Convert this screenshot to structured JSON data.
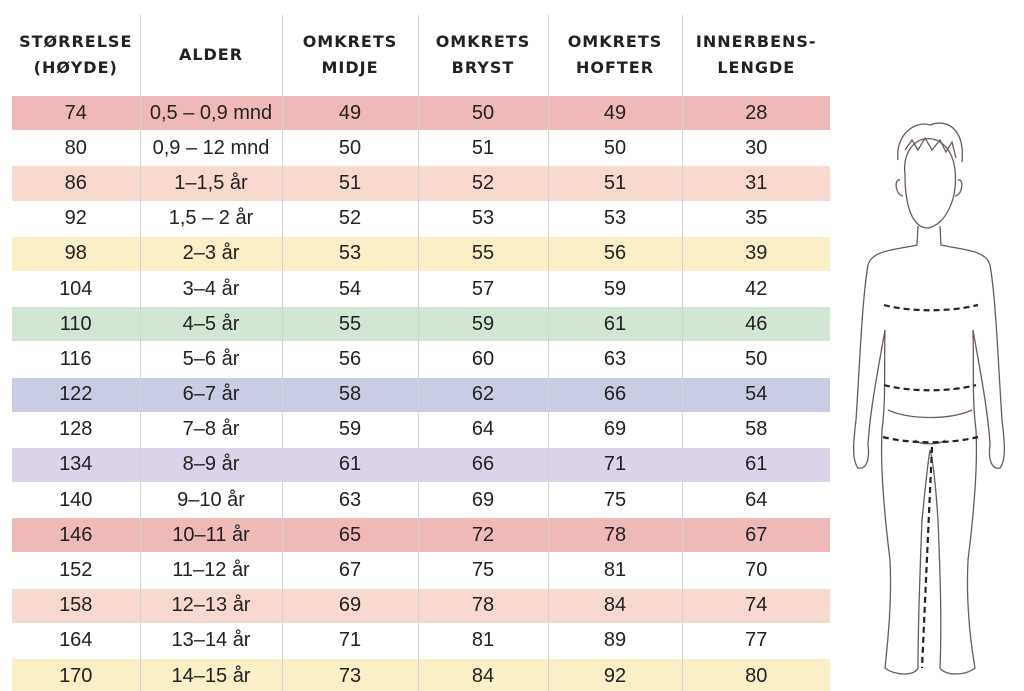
{
  "table": {
    "header": [
      [
        "STØRRELSE",
        "(HØYDE)"
      ],
      [
        "ALDER"
      ],
      [
        "OMKRETS",
        "MIDJE"
      ],
      [
        "OMKRETS",
        "BRYST"
      ],
      [
        "OMKRETS",
        "HOFTER"
      ],
      [
        "INNERBENS-",
        "LENGDE"
      ]
    ],
    "rows": [
      [
        74,
        "0,5 – 0,9 mnd",
        49,
        50,
        49,
        28
      ],
      [
        80,
        "0,9 – 12 mnd",
        50,
        51,
        50,
        30
      ],
      [
        86,
        "1–1,5 år",
        51,
        52,
        51,
        31
      ],
      [
        92,
        "1,5 – 2 år",
        52,
        53,
        53,
        35
      ],
      [
        98,
        "2–3 år",
        53,
        55,
        56,
        39
      ],
      [
        104,
        "3–4 år",
        54,
        57,
        59,
        42
      ],
      [
        110,
        "4–5 år",
        55,
        59,
        61,
        46
      ],
      [
        116,
        "5–6 år",
        56,
        60,
        63,
        50
      ],
      [
        122,
        "6–7 år",
        58,
        62,
        66,
        54
      ],
      [
        128,
        "7–8 år",
        59,
        64,
        69,
        58
      ],
      [
        134,
        "8–9 år",
        61,
        66,
        71,
        61
      ],
      [
        140,
        "9–10 år",
        63,
        69,
        75,
        64
      ],
      [
        146,
        "10–11 år",
        65,
        72,
        78,
        67
      ],
      [
        152,
        "11–12 år",
        67,
        75,
        81,
        70
      ],
      [
        158,
        "12–13 år",
        69,
        78,
        84,
        74
      ],
      [
        164,
        "13–14 år",
        71,
        81,
        89,
        77
      ],
      [
        170,
        "14–15 år",
        73,
        84,
        92,
        80
      ]
    ]
  }
}
